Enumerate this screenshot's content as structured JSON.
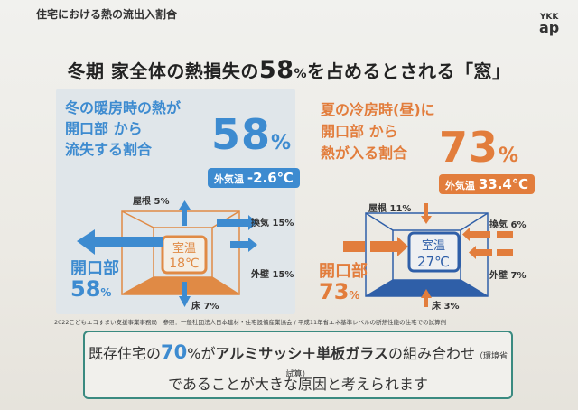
{
  "header": {
    "title": "住宅における熱の流出入割合",
    "logo_top": "YKK",
    "logo_bottom": "ap"
  },
  "headline": {
    "pre": "冬期 家全体の熱損失の",
    "value": "58",
    "unit": "%",
    "post": "を占めるとされる「窓」"
  },
  "winter": {
    "lead": [
      "冬の暖房時の熱が",
      "開口部 から",
      "流失する割合"
    ],
    "percent": "58",
    "unit": "%",
    "outside_label": "外気温",
    "outside_value": "-2.6℃",
    "room_label": "室温",
    "room_temp": "18℃",
    "roof": "屋根 5%",
    "ventilation": "換気 15%",
    "wall": "外壁 15%",
    "floor": "床 7%",
    "opening_label": "開口部",
    "opening_value": "58",
    "opening_unit": "%",
    "color": "#3d8bd0"
  },
  "summer": {
    "lead": [
      "夏の冷房時(昼)に",
      "開口部 から",
      "熱が入る割合"
    ],
    "percent": "73",
    "unit": "%",
    "outside_label": "外気温",
    "outside_value": "33.4℃",
    "room_label": "室温",
    "room_temp": "27℃",
    "roof": "屋根 11%",
    "ventilation": "換気 6%",
    "wall": "外壁 7%",
    "floor": "床 3%",
    "opening_label": "開口部",
    "opening_value": "73",
    "opening_unit": "%",
    "color": "#e27d3c"
  },
  "footnote": "2022こどもエコすまい支援事業事務局　参照：一般社団法人日本建材・住宅設備産業協会 / 平成11年省エネ基準レベルの断熱性能の住宅での試算例",
  "bottom": {
    "l1_pre": "既存住宅の",
    "l1_value": "70",
    "l1_mid": "%が",
    "l1_bold": "アルミサッシ＋単板ガラス",
    "l1_post": "の組み合わせ",
    "l1_note": "（環境省試算）",
    "l2": "であることが大きな原因と考えられます"
  }
}
